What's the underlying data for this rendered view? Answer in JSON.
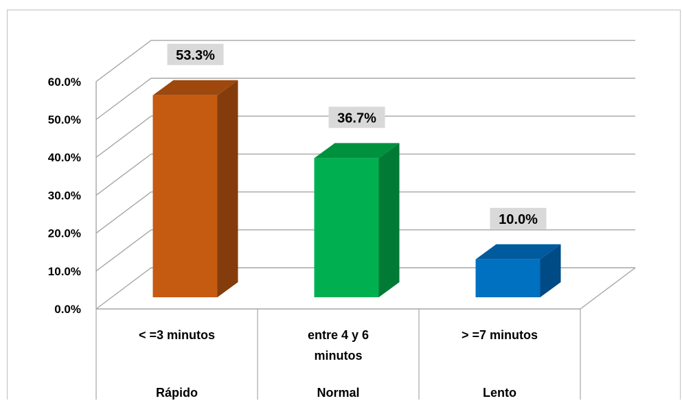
{
  "chart_data": {
    "type": "bar",
    "categories": [
      "< =3 minutos",
      "entre 4 y 6 minutos",
      "> =7 minutos"
    ],
    "category_lines": [
      [
        "< =3 minutos"
      ],
      [
        "entre 4 y 6",
        "minutos"
      ],
      [
        "> =7 minutos"
      ]
    ],
    "groups": [
      "Rápido",
      "Normal",
      "Lento"
    ],
    "values": [
      53.3,
      36.7,
      10.0
    ],
    "value_labels": [
      "53.3%",
      "36.7%",
      "10.0%"
    ],
    "ylim": [
      0,
      60
    ],
    "yticks": [
      "0.0%",
      "10.0%",
      "20.0%",
      "30.0%",
      "40.0%",
      "50.0%",
      "60.0%"
    ],
    "grid": true,
    "style": "3d-column",
    "colors": [
      {
        "front": "#c55a11",
        "side": "#843c0c",
        "top": "#9e480e"
      },
      {
        "front": "#00b050",
        "side": "#007a35",
        "top": "#00913f"
      },
      {
        "front": "#0070c0",
        "side": "#004a85",
        "top": "#005a9e"
      }
    ],
    "label_box_color": "#d9d9d9"
  }
}
